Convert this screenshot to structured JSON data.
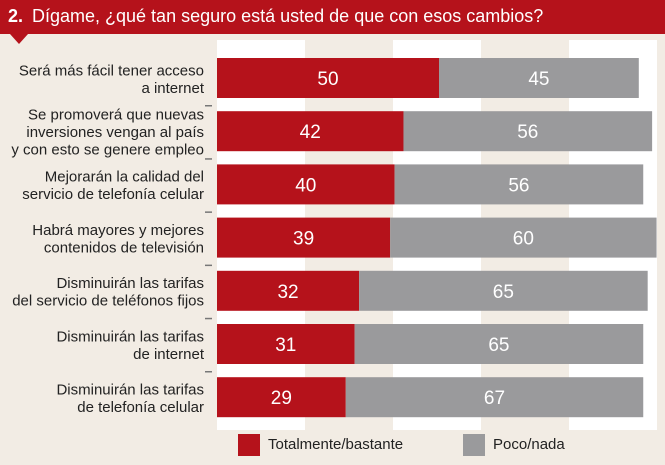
{
  "header": {
    "number": "2.",
    "title": "Dígame, ¿qué tan seguro está usted de que con esos cambios?"
  },
  "colors": {
    "primary": "#b5121b",
    "secondary": "#9a9a9c",
    "band": "#ffffff",
    "background": "#f2ece4"
  },
  "legend": {
    "first": "Totalmente/bastante",
    "second": "Poco/nada"
  },
  "chart_data": {
    "type": "bar",
    "orientation": "horizontal",
    "stacked": true,
    "categories": [
      [
        "Será más fácil tener acceso",
        "a internet"
      ],
      [
        "Se promoverá que nuevas",
        "inversiones vengan al país",
        "y con esto se genere empleo"
      ],
      [
        "Mejorarán la calidad del",
        "servicio de telefonía celular"
      ],
      [
        "Habrá mayores y mejores",
        "contenidos de televisión"
      ],
      [
        "Disminuirán las tarifas",
        "del servicio de teléfonos fijos"
      ],
      [
        "Disminuirán las tarifas",
        "de internet"
      ],
      [
        "Disminuirán las tarifas",
        "de telefonía celular"
      ]
    ],
    "series": [
      {
        "name": "Totalmente/bastante",
        "values": [
          50,
          42,
          40,
          39,
          32,
          31,
          29
        ]
      },
      {
        "name": "Poco/nada",
        "values": [
          45,
          56,
          56,
          60,
          65,
          65,
          67
        ]
      }
    ],
    "xlim": [
      0,
      100
    ],
    "legend_position": "bottom"
  }
}
